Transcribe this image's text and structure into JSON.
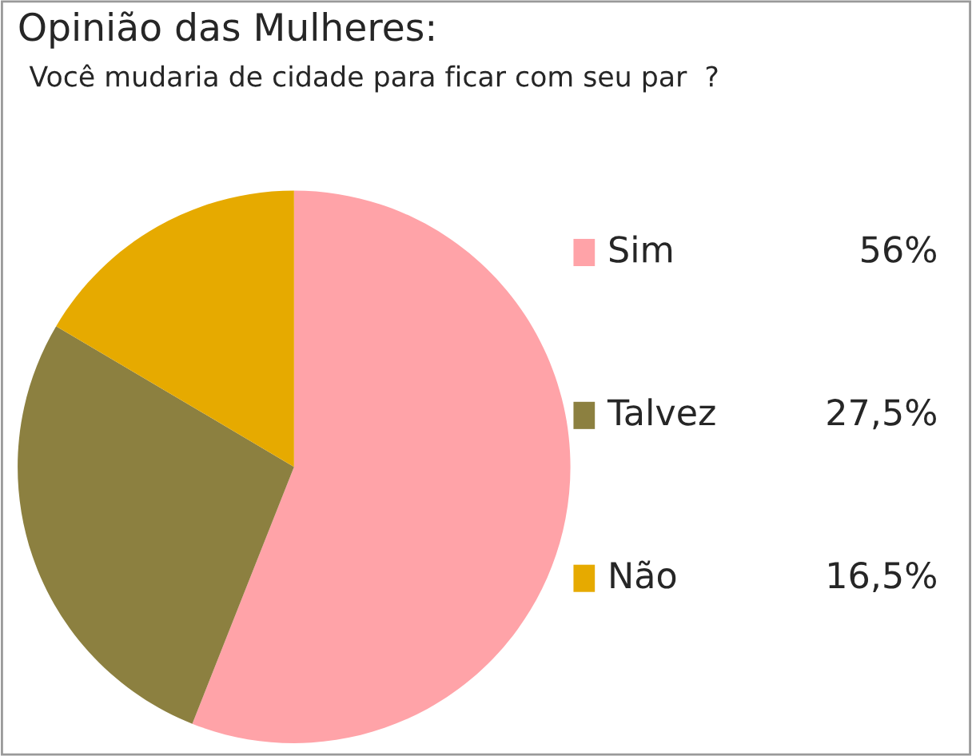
{
  "chart_data": {
    "type": "pie",
    "title": "Opinião das Mulheres:",
    "subtitle": "Você mudaria de cidade para ficar com seu par  ?",
    "categories": [
      "Sim",
      "Talvez",
      "Não"
    ],
    "values": [
      56,
      27.5,
      16.5
    ],
    "value_labels": [
      "56%",
      "27,5%",
      "16,5%"
    ],
    "colors": [
      "#ffa3a8",
      "#8c8040",
      "#e6aa00"
    ],
    "legend": "right"
  }
}
